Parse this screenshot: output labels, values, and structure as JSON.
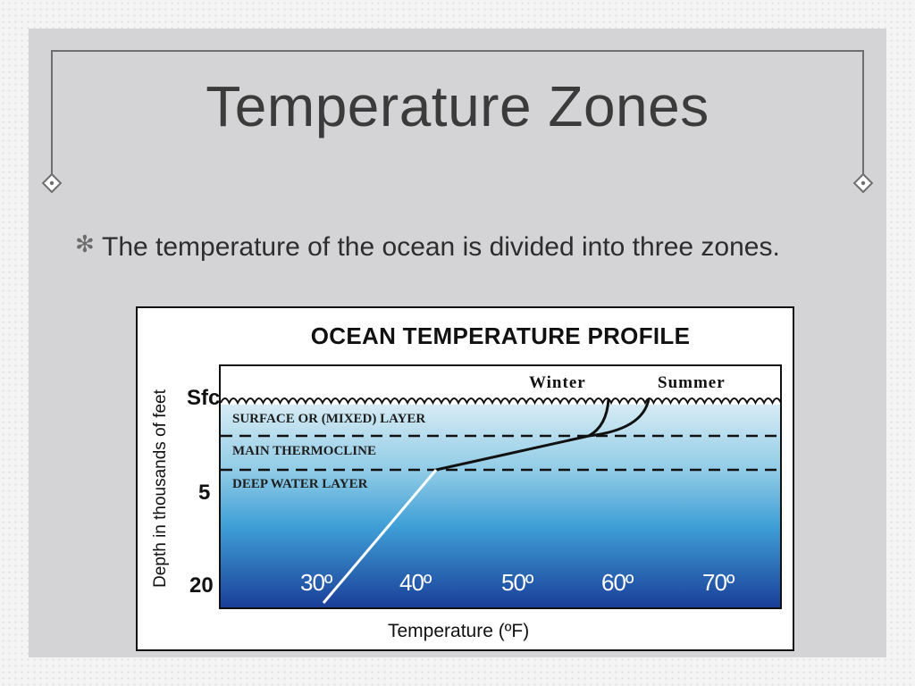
{
  "slide": {
    "title": "Temperature Zones",
    "bullet_icon": "asterisk-bullet",
    "bullet_text": "The temperature of the ocean is divided into three zones."
  },
  "diagram": {
    "title": "OCEAN TEMPERATURE PROFILE",
    "y_axis_label": "Depth in thousands of feet",
    "x_axis_label": "Temperature (ºF)",
    "depth_ticks": [
      "Sfc",
      "5",
      "20"
    ],
    "temperature_ticks": [
      "30º",
      "40º",
      "50º",
      "60º",
      "70º"
    ],
    "seasons": [
      "Winter",
      "Summer"
    ],
    "zones": [
      "SURFACE  OR (MIXED) LAYER",
      "MAIN THERMOCLINE",
      "DEEP WATER LAYER"
    ],
    "colors": {
      "water_top": "#c9e3ef",
      "water_mid": "#4aa9d6",
      "water_bottom": "#1d4fa3",
      "profile_line": "#111111",
      "deep_profile_line": "#ffffff"
    }
  }
}
